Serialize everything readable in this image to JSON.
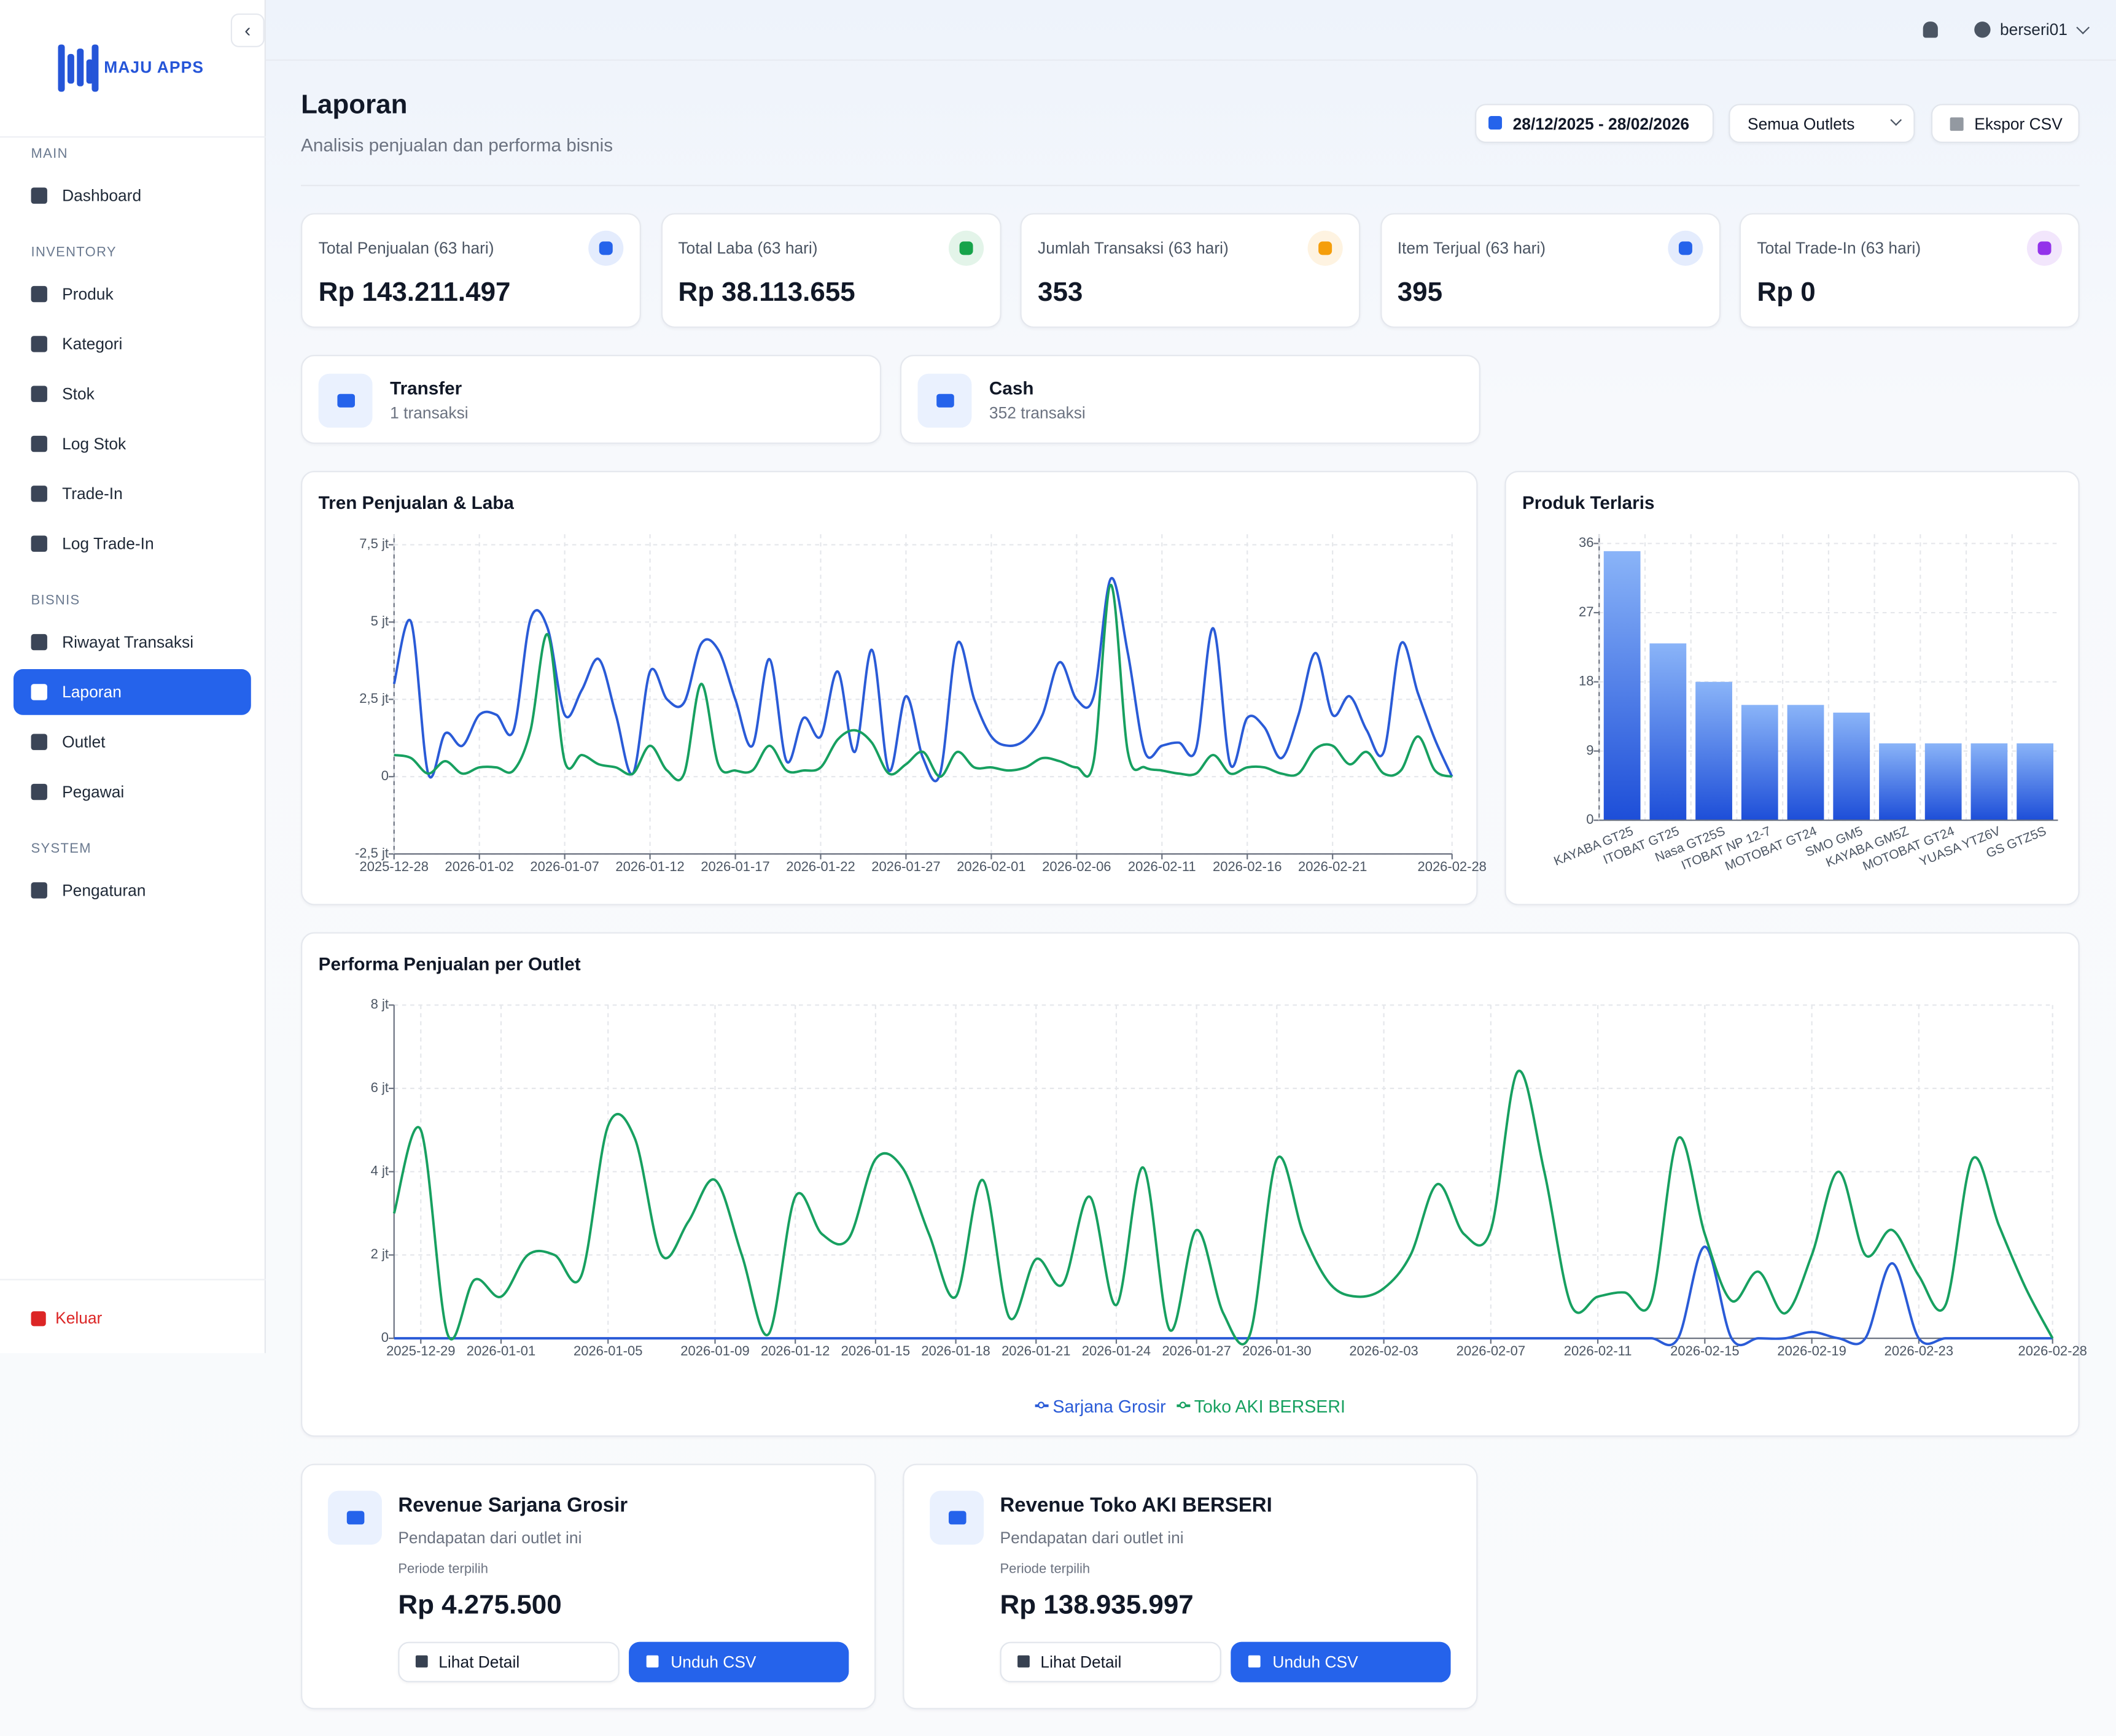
{
  "sidebar": {
    "brand": "MAJU APPS",
    "sections": [
      {
        "title": "MAIN",
        "items": [
          "Dashboard"
        ]
      },
      {
        "title": "INVENTORY",
        "items": [
          "Produk",
          "Kategori",
          "Stok",
          "Log Stok",
          "Trade-In",
          "Log Trade-In"
        ]
      },
      {
        "title": "BISNIS",
        "items": [
          "Riwayat Transaksi",
          "Laporan",
          "Outlet",
          "Pegawai"
        ]
      },
      {
        "title": "SYSTEM",
        "items": [
          "Pengaturan"
        ]
      }
    ],
    "logout": "Keluar"
  },
  "topbar": {
    "user": "berseri01"
  },
  "header": {
    "title": "Laporan",
    "subtitle": "Analisis penjualan dan performa bisnis",
    "date_range": "28/12/2025 - 28/02/2026",
    "outlet_select": "Semua Outlets",
    "export": "Ekspor CSV"
  },
  "stats": [
    {
      "label": "Total Penjualan (63 hari)",
      "value": "Rp 143.211.497",
      "color": "#2563eb"
    },
    {
      "label": "Total Laba (63 hari)",
      "value": "Rp 38.113.655",
      "color": "#16a34a"
    },
    {
      "label": "Jumlah Transaksi (63 hari)",
      "value": "353",
      "color": "#f59e0b"
    },
    {
      "label": "Item Terjual (63 hari)",
      "value": "395",
      "color": "#2563eb"
    },
    {
      "label": "Total Trade-In (63 hari)",
      "value": "Rp 0",
      "color": "#9333ea"
    }
  ],
  "payments": [
    {
      "method": "Transfer",
      "count": "1 transaksi"
    },
    {
      "method": "Cash",
      "count": "352 transaksi"
    }
  ],
  "chart_data": [
    {
      "type": "line",
      "title": "Tren Penjualan & Laba",
      "grid": true,
      "x": [
        "2025-12-28",
        "2025-12-29",
        "2025-12-30",
        "2025-12-31",
        "2026-01-01",
        "2026-01-02",
        "2026-01-03",
        "2026-01-04",
        "2026-01-05",
        "2026-01-06",
        "2026-01-07",
        "2026-01-08",
        "2026-01-09",
        "2026-01-10",
        "2026-01-11",
        "2026-01-12",
        "2026-01-13",
        "2026-01-14",
        "2026-01-15",
        "2026-01-16",
        "2026-01-17",
        "2026-01-18",
        "2026-01-19",
        "2026-01-20",
        "2026-01-21",
        "2026-01-22",
        "2026-01-23",
        "2026-01-24",
        "2026-01-25",
        "2026-01-26",
        "2026-01-27",
        "2026-01-28",
        "2026-01-29",
        "2026-01-30",
        "2026-01-31",
        "2026-02-01",
        "2026-02-02",
        "2026-02-03",
        "2026-02-04",
        "2026-02-05",
        "2026-02-06",
        "2026-02-07",
        "2026-02-08",
        "2026-02-09",
        "2026-02-10",
        "2026-02-11",
        "2026-02-12",
        "2026-02-13",
        "2026-02-14",
        "2026-02-15",
        "2026-02-16",
        "2026-02-17",
        "2026-02-18",
        "2026-02-19",
        "2026-02-20",
        "2026-02-21",
        "2026-02-22",
        "2026-02-23",
        "2026-02-24",
        "2026-02-25",
        "2026-02-26",
        "2026-02-27",
        "2026-02-28"
      ],
      "xticks": [
        "2025-12-28",
        "2026-01-02",
        "2026-01-07",
        "2026-01-12",
        "2026-01-17",
        "2026-01-22",
        "2026-01-27",
        "2026-02-01",
        "2026-02-06",
        "2026-02-11",
        "2026-02-16",
        "2026-02-21",
        "2026-02-28"
      ],
      "ylim": [
        -2.5,
        7.84
      ],
      "yticks": [
        {
          "value": -2.5,
          "label": "-2,5 jt"
        },
        0,
        {
          "value": 2.5,
          "label": "2,5 jt"
        },
        {
          "value": 5,
          "label": "5 jt"
        },
        {
          "value": 7.5,
          "label": "7,5 jt"
        }
      ],
      "series": [
        {
          "color": "#2a5bd7",
          "values": [
            3.0,
            5.0,
            0.1,
            1.4,
            1.0,
            2.0,
            2.0,
            1.5,
            5.1,
            4.8,
            2.0,
            2.8,
            3.8,
            2.0,
            0.1,
            3.4,
            2.5,
            2.4,
            4.3,
            4.1,
            2.5,
            1.0,
            3.8,
            0.5,
            1.9,
            1.3,
            3.4,
            0.8,
            4.1,
            0.2,
            2.6,
            0.6,
            0.1,
            4.3,
            2.5,
            1.3,
            1.0,
            1.2,
            2.0,
            3.7,
            2.5,
            2.6,
            6.4,
            4.0,
            0.8,
            1.0,
            1.1,
            0.9,
            4.8,
            0.4,
            1.9,
            1.6,
            0.6,
            2.0,
            4.0,
            2.0,
            2.6,
            1.5,
            0.8,
            4.3,
            2.7,
            1.2,
            0.0
          ]
        },
        {
          "color": "#17a060",
          "values": [
            0.7,
            0.6,
            0.1,
            0.5,
            0.1,
            0.3,
            0.3,
            0.2,
            1.5,
            4.6,
            0.5,
            0.7,
            0.4,
            0.3,
            0.1,
            1.0,
            0.2,
            0.1,
            3.0,
            0.4,
            0.2,
            0.2,
            1.0,
            0.2,
            0.2,
            0.3,
            1.2,
            1.5,
            1.1,
            0.1,
            0.4,
            0.8,
            0.0,
            0.8,
            0.3,
            0.3,
            0.2,
            0.3,
            0.6,
            0.5,
            0.3,
            0.5,
            6.2,
            0.8,
            0.3,
            0.2,
            0.1,
            0.1,
            0.7,
            0.1,
            0.3,
            0.3,
            0.1,
            0.1,
            0.9,
            1.0,
            0.4,
            0.8,
            0.1,
            0.2,
            1.3,
            0.2,
            0.0
          ]
        }
      ]
    },
    {
      "type": "bar",
      "title": "Produk Terlaris",
      "grid": true,
      "color": "#2563eb",
      "categories": [
        "KAYABA GT25",
        "ITOBAT GT25",
        "Nasa GT25S",
        "ITOBAT NP 12-7",
        "MOTOBAT GT24",
        "SMO GM5",
        "KAYABA GM5Z",
        "MOTOBAT GT24",
        "YUASA YTZ6V",
        "GS GTZ5S"
      ],
      "values": [
        35,
        23,
        18,
        15,
        15,
        14,
        10,
        10,
        10,
        10
      ],
      "ylim": [
        0,
        37.2
      ],
      "yticks": [
        0,
        9,
        18,
        27,
        36
      ]
    },
    {
      "type": "line",
      "title": "Performa Penjualan per Outlet",
      "grid": true,
      "legend": "bottom",
      "x": [
        "2025-12-28",
        "2025-12-29",
        "2025-12-30",
        "2025-12-31",
        "2026-01-01",
        "2026-01-02",
        "2026-01-03",
        "2026-01-04",
        "2026-01-05",
        "2026-01-06",
        "2026-01-07",
        "2026-01-08",
        "2026-01-09",
        "2026-01-10",
        "2026-01-11",
        "2026-01-12",
        "2026-01-13",
        "2026-01-14",
        "2026-01-15",
        "2026-01-16",
        "2026-01-17",
        "2026-01-18",
        "2026-01-19",
        "2026-01-20",
        "2026-01-21",
        "2026-01-22",
        "2026-01-23",
        "2026-01-24",
        "2026-01-25",
        "2026-01-26",
        "2026-01-27",
        "2026-01-28",
        "2026-01-29",
        "2026-01-30",
        "2026-01-31",
        "2026-02-01",
        "2026-02-02",
        "2026-02-03",
        "2026-02-04",
        "2026-02-05",
        "2026-02-06",
        "2026-02-07",
        "2026-02-08",
        "2026-02-09",
        "2026-02-10",
        "2026-02-11",
        "2026-02-12",
        "2026-02-13",
        "2026-02-14",
        "2026-02-15",
        "2026-02-16",
        "2026-02-17",
        "2026-02-18",
        "2026-02-19",
        "2026-02-20",
        "2026-02-21",
        "2026-02-22",
        "2026-02-23",
        "2026-02-24",
        "2026-02-25",
        "2026-02-26",
        "2026-02-27",
        "2026-02-28"
      ],
      "xticks": [
        "2025-12-29",
        "2026-01-01",
        "2026-01-05",
        "2026-01-09",
        "2026-01-12",
        "2026-01-15",
        "2026-01-18",
        "2026-01-21",
        "2026-01-24",
        "2026-01-27",
        "2026-01-30",
        "2026-02-03",
        "2026-02-07",
        "2026-02-11",
        "2026-02-15",
        "2026-02-19",
        "2026-02-23",
        "2026-02-28"
      ],
      "ylim": [
        0,
        8
      ],
      "yticks": [
        0,
        {
          "value": 2,
          "label": "2 jt"
        },
        {
          "value": 4,
          "label": "4 jt"
        },
        {
          "value": 6,
          "label": "6 jt"
        },
        {
          "value": 8,
          "label": "8 jt"
        }
      ],
      "series": [
        {
          "name": "Sarjana Grosir",
          "color": "#2a5bd7",
          "values": [
            0,
            0,
            0,
            0,
            0,
            0,
            0,
            0,
            0,
            0,
            0,
            0,
            0,
            0,
            0,
            0,
            0,
            0,
            0,
            0,
            0,
            0,
            0,
            0,
            0,
            0,
            0,
            0,
            0,
            0,
            0,
            0,
            0,
            0,
            0,
            0,
            0,
            0,
            0,
            0,
            0,
            0,
            0,
            0,
            0,
            0,
            0,
            0,
            0,
            2.2,
            0,
            0,
            0,
            0.15,
            0,
            0,
            1.8,
            0,
            0,
            0,
            0,
            0,
            0
          ]
        },
        {
          "name": "Toko AKI BERSERI",
          "color": "#17a060",
          "values": [
            3.0,
            5.0,
            0.1,
            1.4,
            1.0,
            2.0,
            2.0,
            1.5,
            5.1,
            4.8,
            2.0,
            2.8,
            3.8,
            2.0,
            0.1,
            3.4,
            2.5,
            2.4,
            4.3,
            4.1,
            2.5,
            1.0,
            3.8,
            0.5,
            1.9,
            1.3,
            3.4,
            0.8,
            4.1,
            0.2,
            2.6,
            0.6,
            0.1,
            4.3,
            2.5,
            1.3,
            1.0,
            1.2,
            2.0,
            3.7,
            2.5,
            2.6,
            6.4,
            4.0,
            0.8,
            1.0,
            1.1,
            0.9,
            4.8,
            2.5,
            0.9,
            1.6,
            0.6,
            2.0,
            4.0,
            2.0,
            2.6,
            1.5,
            0.8,
            4.3,
            2.7,
            1.2,
            0.0
          ]
        }
      ]
    }
  ],
  "outlet_revenue": [
    {
      "title": "Revenue Sarjana Grosir",
      "subtitle": "Pendapatan dari outlet ini",
      "period": "Periode terpilih",
      "value": "Rp 4.275.500",
      "detail": "Lihat Detail",
      "download": "Unduh CSV"
    },
    {
      "title": "Revenue Toko AKI BERSERI",
      "subtitle": "Pendapatan dari outlet ini",
      "period": "Periode terpilih",
      "value": "Rp 138.935.997",
      "detail": "Lihat Detail",
      "download": "Unduh CSV"
    }
  ]
}
